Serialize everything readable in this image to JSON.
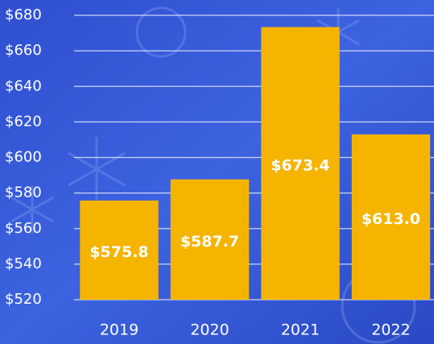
{
  "chart_data": {
    "type": "bar",
    "categories": [
      "2019",
      "2020",
      "2021",
      "2022"
    ],
    "values": [
      575.8,
      587.7,
      673.4,
      613.0
    ],
    "value_labels": [
      "$575.8",
      "$587.7",
      "$673.4",
      "$613.0"
    ],
    "color": "#f5b400",
    "ylim": [
      520,
      680
    ],
    "yticks": [
      {
        "value": 520,
        "label": "$520"
      },
      {
        "value": 540,
        "label": "$540"
      },
      {
        "value": 560,
        "label": "$560"
      },
      {
        "value": 580,
        "label": "$580"
      },
      {
        "value": 600,
        "label": "$600"
      },
      {
        "value": 620,
        "label": "$620"
      },
      {
        "value": 640,
        "label": "$640"
      },
      {
        "value": 660,
        "label": "$660"
      },
      {
        "value": 680,
        "label": "$680"
      }
    ],
    "grid": true
  }
}
